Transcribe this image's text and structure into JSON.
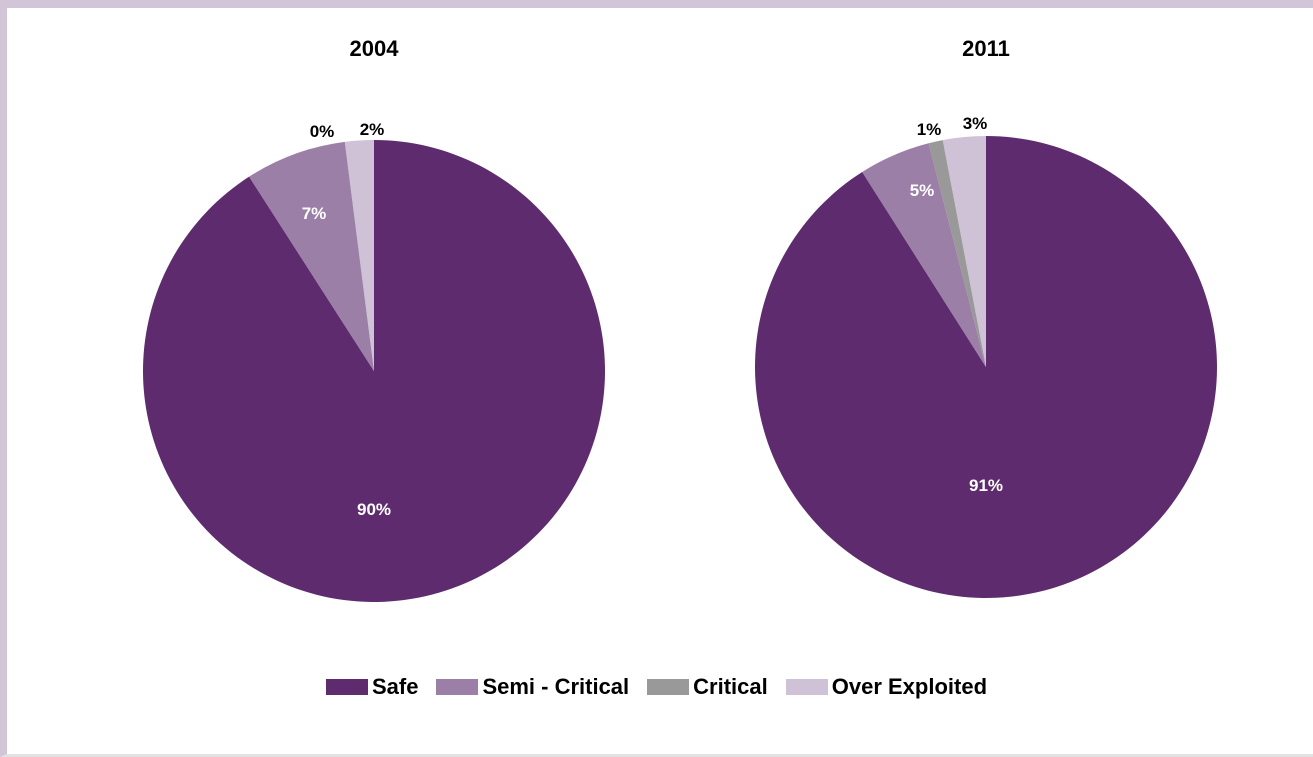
{
  "chart_data": [
    {
      "type": "pie",
      "title": "2004",
      "categories": [
        "Safe",
        "Semi - Critical",
        "Critical",
        "Over Exploited"
      ],
      "values": [
        90,
        7,
        0,
        2
      ],
      "labels": [
        "90%",
        "7%",
        "0%",
        "2%"
      ],
      "colors": [
        "#5e2c6e",
        "#9b7fa6",
        "#999999",
        "#cfc2d6"
      ],
      "legend": "bottom"
    },
    {
      "type": "pie",
      "title": "2011",
      "categories": [
        "Safe",
        "Semi - Critical",
        "Critical",
        "Over Exploited"
      ],
      "values": [
        91,
        5,
        1,
        3
      ],
      "labels": [
        "91%",
        "5%",
        "1%",
        "3%"
      ],
      "colors": [
        "#5e2c6e",
        "#9b7fa6",
        "#999999",
        "#cfc2d6"
      ],
      "legend": "bottom"
    }
  ],
  "legend": {
    "items": [
      {
        "label": "Safe",
        "color": "#5e2c6e"
      },
      {
        "label": "Semi - Critical",
        "color": "#9b7fa6"
      },
      {
        "label": "Critical",
        "color": "#999999"
      },
      {
        "label": "Over Exploited",
        "color": "#cfc2d6"
      }
    ]
  }
}
